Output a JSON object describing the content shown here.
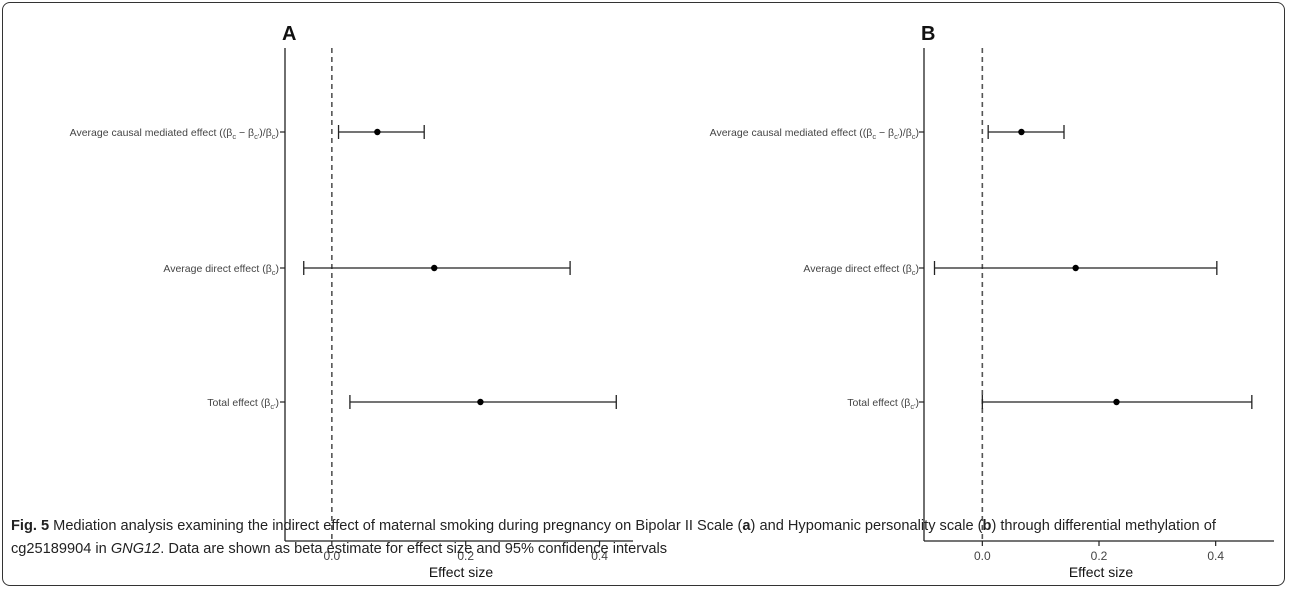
{
  "chart_data": [
    {
      "type": "forest",
      "panel_label": "A",
      "xlabel": "Effect size",
      "ylabel": "",
      "xlim": [
        -0.07,
        0.45
      ],
      "xticks": [
        "0.0",
        "0.2",
        "0.4"
      ],
      "xtick_values": [
        0.0,
        0.2,
        0.4
      ],
      "reference_line": 0.0,
      "rows": [
        {
          "label": "Average causal mediated effect ((β",
          "estimate": 0.068,
          "ci_low": 0.01,
          "ci_high": 0.138
        },
        {
          "label": "Average direct effect (β",
          "estimate": 0.153,
          "ci_low": -0.042,
          "ci_high": 0.356
        },
        {
          "label": "Total effect (β",
          "estimate": 0.222,
          "ci_low": 0.027,
          "ci_high": 0.425
        }
      ]
    },
    {
      "type": "forest",
      "panel_label": "B",
      "xlabel": "Effect size",
      "ylabel": "",
      "xlim": [
        -0.1,
        0.5
      ],
      "xticks": [
        "0.0",
        "0.2",
        "0.4"
      ],
      "xtick_values": [
        0.0,
        0.2,
        0.4
      ],
      "reference_line": 0.0,
      "rows": [
        {
          "label": "Average causal mediated effect ((β",
          "estimate": 0.067,
          "ci_low": 0.01,
          "ci_high": 0.14
        },
        {
          "label": "Average direct effect (β",
          "estimate": 0.16,
          "ci_low": -0.082,
          "ci_high": 0.402
        },
        {
          "label": "Total effect (β",
          "estimate": 0.23,
          "ci_low": 0.0,
          "ci_high": 0.462
        }
      ]
    }
  ],
  "caption": {
    "fig_label": "Fig. 5",
    "text_1": " Mediation analysis examining the indirect effect of maternal smoking during pregnancy on Bipolar II Scale (",
    "bold_a": "a",
    "text_2": ") and Hypomanic personality scale (",
    "bold_b": "b",
    "text_3": ") through differential methylation of cg25189904 in ",
    "gene": "GNG12",
    "text_4": ". Data are shown as beta estimate for effect size and 95% confidence intervals"
  }
}
